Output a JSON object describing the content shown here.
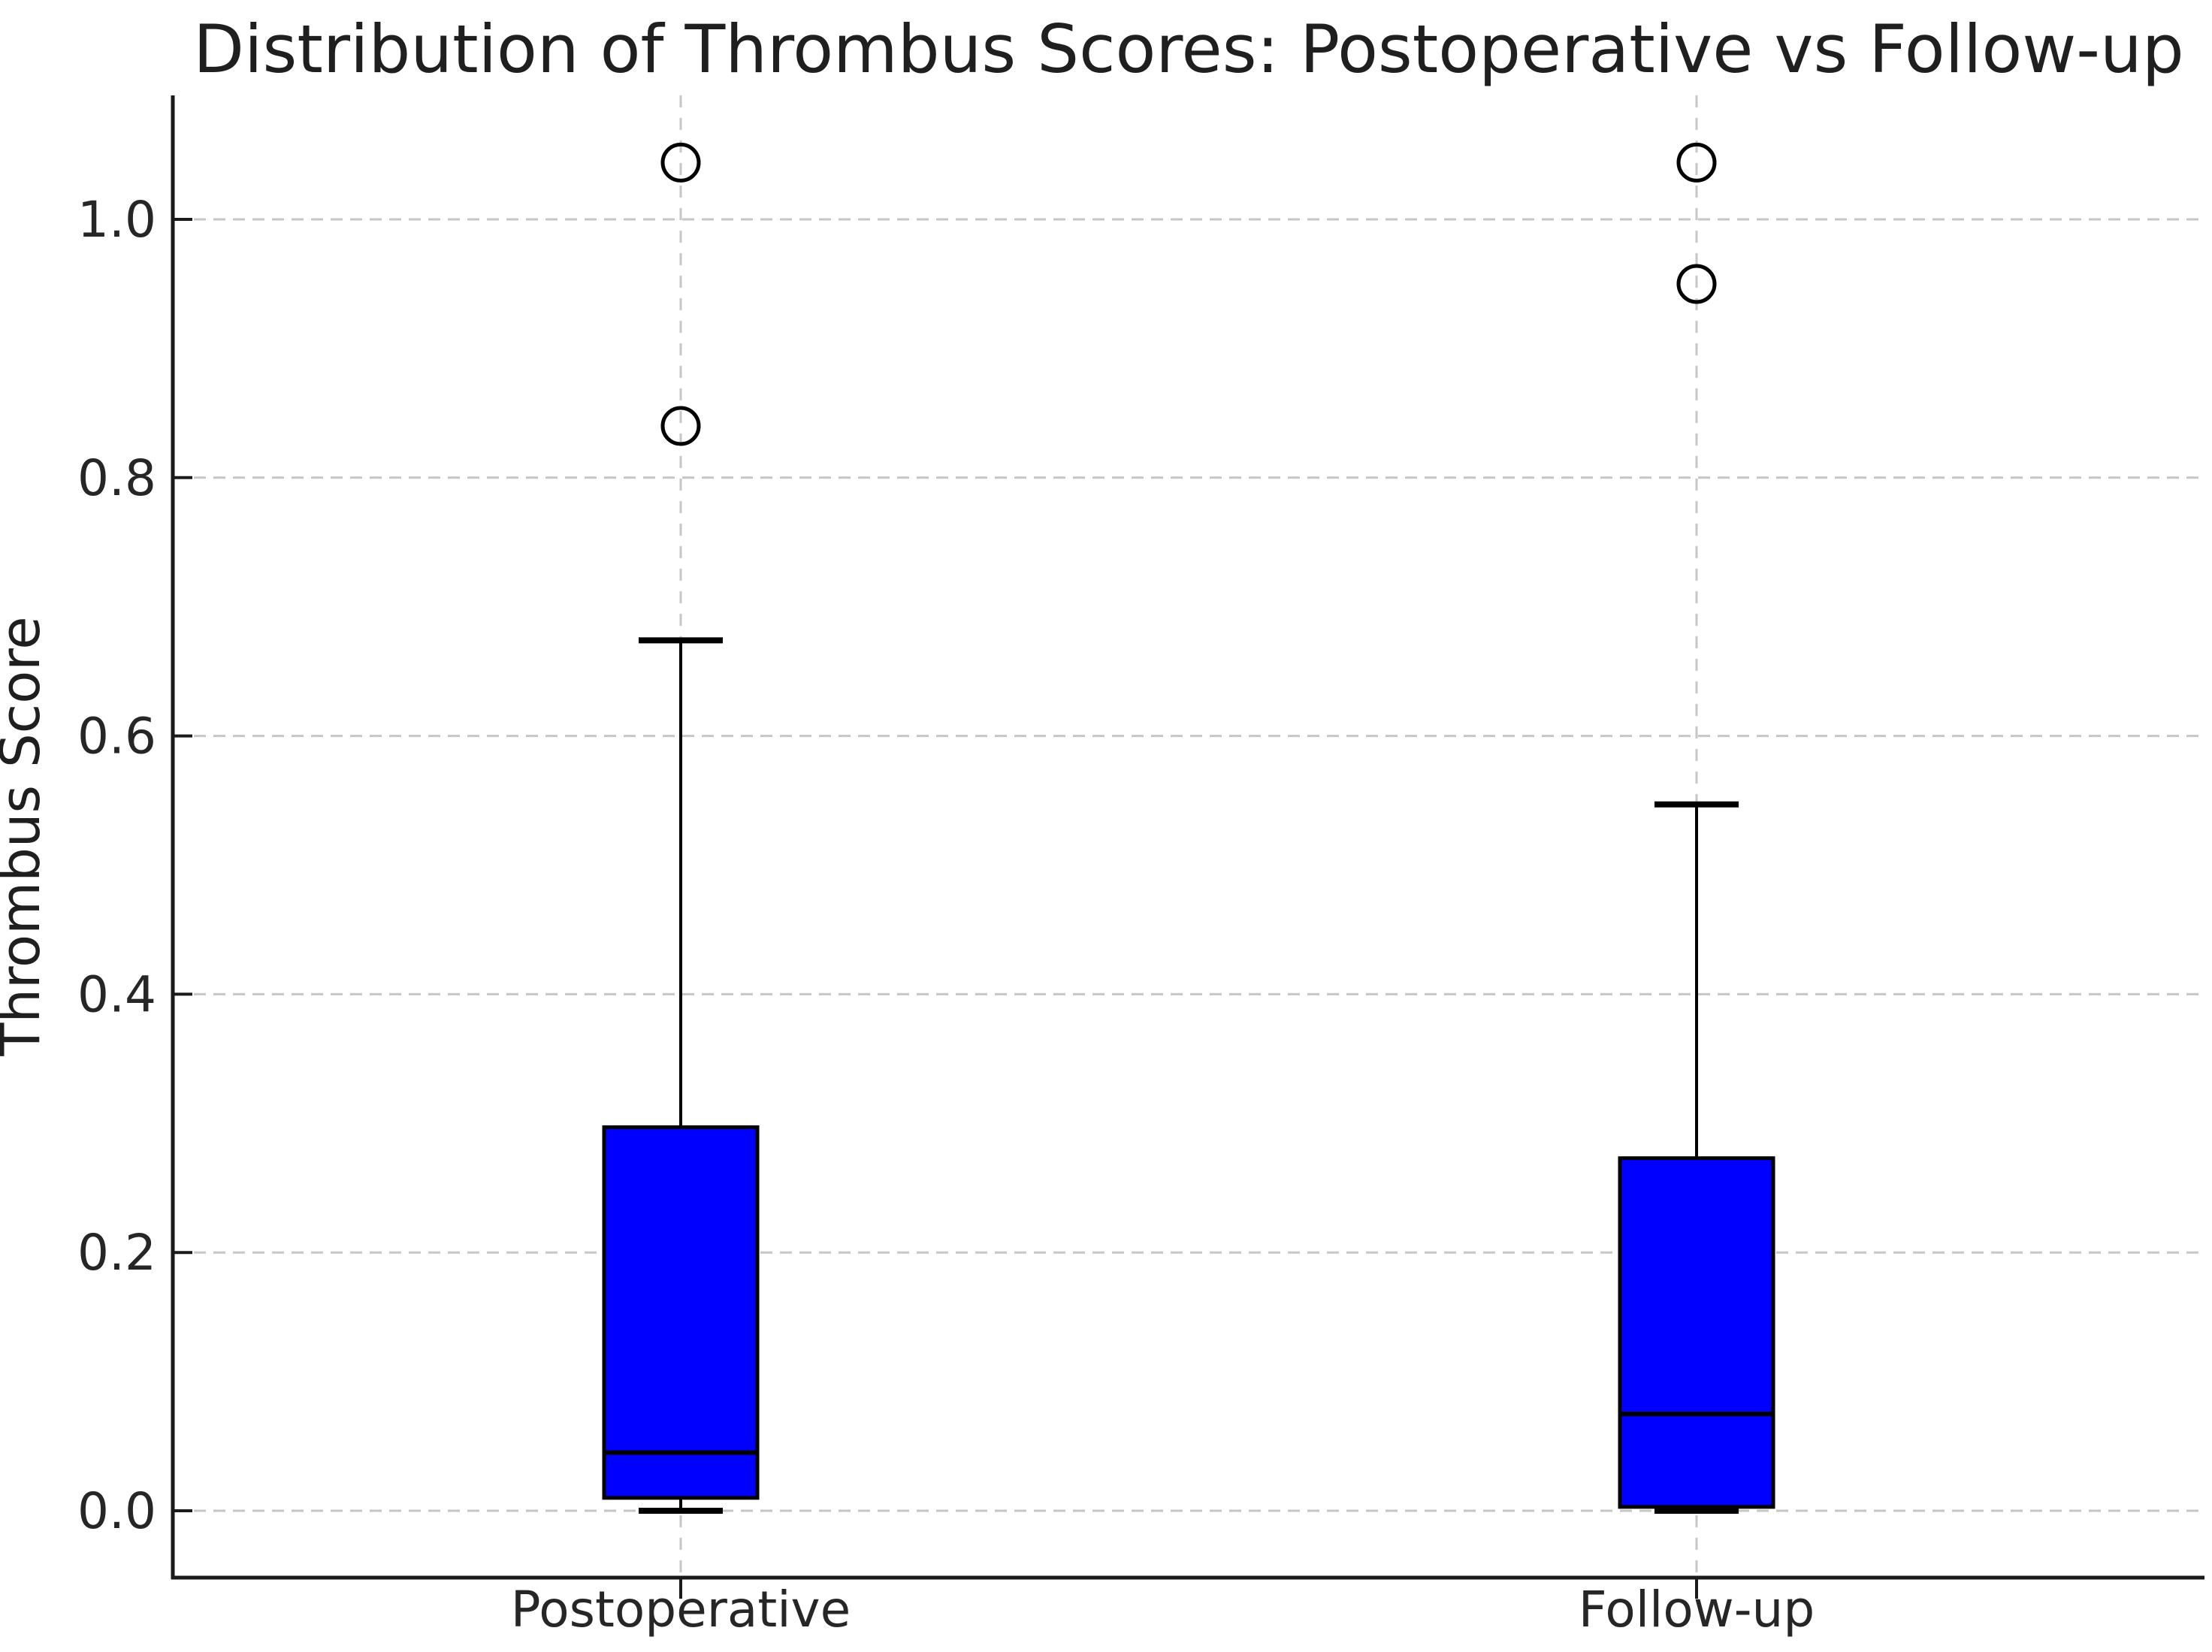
{
  "chart_data": {
    "type": "boxplot",
    "title": "Distribution of Thrombus Scores: Postoperative vs Follow-up",
    "ylabel": "Thrombus Score",
    "xlabel": "",
    "categories": [
      "Postoperative",
      "Follow-up"
    ],
    "y_ticks": [
      0.0,
      0.2,
      0.4,
      0.6,
      0.8,
      1.0
    ],
    "y_tick_labels": [
      "0.0",
      "0.2",
      "0.4",
      "0.6",
      "0.8",
      "1.0"
    ],
    "ylim": [
      -0.052,
      1.096
    ],
    "grid": "dashed, both axes, light gray",
    "legend": "none",
    "series": [
      {
        "name": "Postoperative",
        "whisker_low": 0.0,
        "q1": 0.01,
        "median": 0.045,
        "q3": 0.297,
        "whisker_high": 0.674,
        "outliers": [
          0.84,
          1.044
        ]
      },
      {
        "name": "Follow-up",
        "whisker_low": 0.0,
        "q1": 0.003,
        "median": 0.075,
        "q3": 0.273,
        "whisker_high": 0.547,
        "outliers": [
          0.95,
          1.044
        ]
      }
    ],
    "colors": {
      "box_fill": "#0000ff",
      "box_edge": "#000000",
      "median_line": "#000000",
      "whisker": "#000000",
      "outlier_stroke": "#000000",
      "grid_line": "#c6c6c6",
      "spine": "#1a1a1a",
      "text": "#262626",
      "background": "#ffffff"
    }
  }
}
